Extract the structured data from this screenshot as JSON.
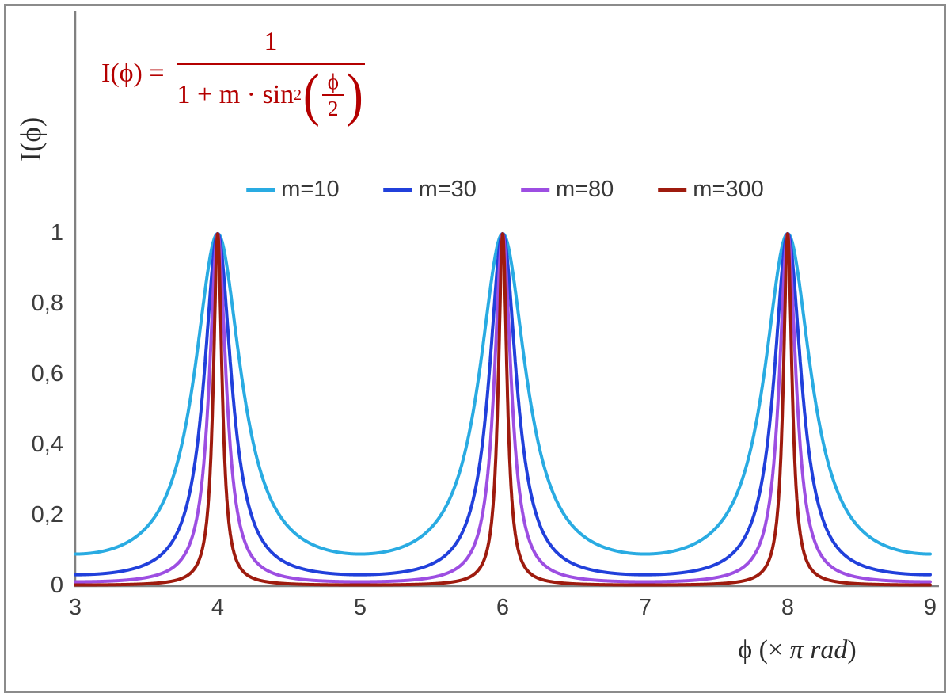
{
  "formula": {
    "lhs": "I(ϕ) =",
    "numerator": "1",
    "den_prefix": "1 + m · sin",
    "den_sup": "2",
    "open_paren": "(",
    "close_paren": ")",
    "inner_num": "ϕ",
    "inner_den": "2",
    "color": "#B40000"
  },
  "axes": {
    "y_label": "I(ϕ)",
    "x_label_prefix": "ϕ  (× ",
    "x_label_italic": "π rad",
    "x_label_suffix": ")"
  },
  "chart_data": {
    "type": "line",
    "title": "",
    "function": "I(x) = 1 / (1 + m · sin²(π·x/2)), x in units of π rad; maxima I=1 at x = 4, 6, 8",
    "xlabel": "ϕ (× π rad)",
    "ylabel": "I(ϕ)",
    "x_range": [
      3,
      9
    ],
    "ylim": [
      0,
      1
    ],
    "grid": false,
    "legend_position": "top-center",
    "x_ticks": [
      {
        "value": 3,
        "label": "3"
      },
      {
        "value": 4,
        "label": "4"
      },
      {
        "value": 5,
        "label": "5"
      },
      {
        "value": 6,
        "label": "6"
      },
      {
        "value": 7,
        "label": "7"
      },
      {
        "value": 8,
        "label": "8"
      },
      {
        "value": 9,
        "label": "9"
      }
    ],
    "y_ticks": [
      {
        "value": 0,
        "label": "0"
      },
      {
        "value": 0.2,
        "label": "0,2"
      },
      {
        "value": 0.4,
        "label": "0,4"
      },
      {
        "value": 0.6,
        "label": "0,6"
      },
      {
        "value": 0.8,
        "label": "0,8"
      },
      {
        "value": 1,
        "label": "1"
      }
    ],
    "series": [
      {
        "name": "m=10",
        "m": 10,
        "color": "#29ABE2",
        "value_at_x3": 0.091,
        "peak_value": 1
      },
      {
        "name": "m=30",
        "m": 30,
        "color": "#2140DB",
        "value_at_x3": 0.032,
        "peak_value": 1
      },
      {
        "name": "m=80",
        "m": 80,
        "color": "#9D4EE2",
        "value_at_x3": 0.012,
        "peak_value": 1
      },
      {
        "name": "m=300",
        "m": 300,
        "color": "#9E1B0E",
        "value_at_x3": 0.003,
        "peak_value": 1
      }
    ],
    "peak_x_positions": [
      4,
      6,
      8
    ],
    "axis_color": "#808080"
  }
}
